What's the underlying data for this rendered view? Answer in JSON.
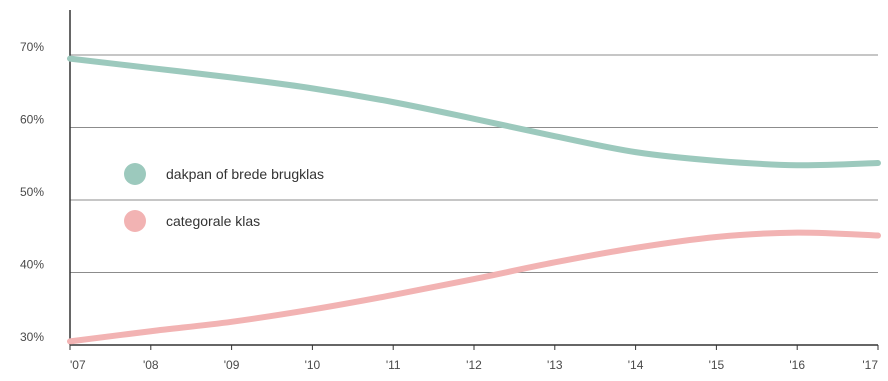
{
  "chart_data": {
    "type": "line",
    "title": "",
    "xlabel": "",
    "ylabel": "",
    "x": [
      "'07",
      "'08",
      "'09",
      "'10",
      "'11",
      "'12",
      "'13",
      "'14",
      "'15",
      "'16",
      "'17"
    ],
    "yticks": [
      "30%",
      "40%",
      "50%",
      "60%",
      "70%"
    ],
    "ylim": [
      30,
      70
    ],
    "grid": true,
    "legend_position": "left",
    "series": [
      {
        "name": "dakpan of brede brugklas",
        "color": "#9cc9bd",
        "values": [
          69.5,
          68.2,
          66.9,
          65.4,
          63.5,
          61.2,
          58.8,
          56.6,
          55.4,
          54.8,
          55.1
        ]
      },
      {
        "name": "categorale klas",
        "color": "#f2b3b3",
        "values": [
          30.5,
          31.9,
          33.2,
          34.9,
          36.9,
          39.1,
          41.4,
          43.4,
          44.9,
          45.5,
          45.1
        ]
      }
    ]
  }
}
